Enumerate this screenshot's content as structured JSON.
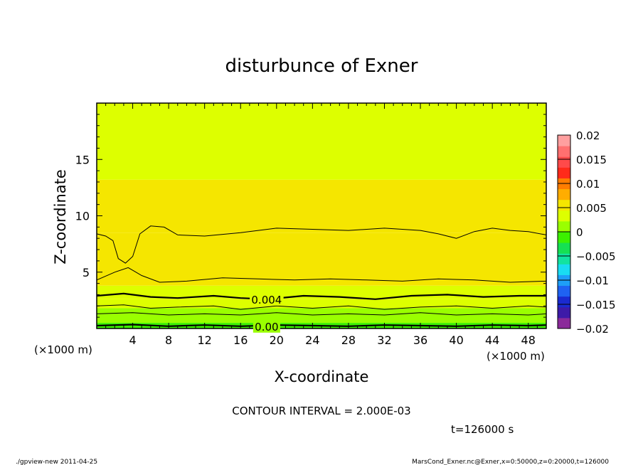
{
  "chart_data": {
    "type": "heatmap",
    "title": "disturbunce of Exner",
    "xlabel": "X-coordinate",
    "ylabel": "Z-coordinate",
    "x_unit_left": "(×1000 m)",
    "x_unit_right": "(×1000 m)",
    "xlim": [
      0,
      50
    ],
    "ylim": [
      0,
      20
    ],
    "x_ticks": [
      "4",
      "8",
      "12",
      "16",
      "20",
      "24",
      "28",
      "32",
      "36",
      "40",
      "44",
      "48"
    ],
    "y_ticks": [
      "5",
      "10",
      "15"
    ],
    "contour_interval_text": "CONTOUR INTERVAL = 2.000E-03",
    "time_text": "t=126000 s",
    "contour_labels": [
      {
        "text": "0.004",
        "x": 17.0,
        "z": 2.6
      },
      {
        "text": "0.00",
        "x": 17.0,
        "z": 0.2
      }
    ],
    "fill_bands": [
      {
        "z_bottom": 0,
        "z_top": 0.5,
        "value": -0.0005
      },
      {
        "z_bottom": 0.5,
        "z_top": 1.2,
        "value": 0.0005
      },
      {
        "z_bottom": 1.2,
        "z_top": 1.8,
        "value": 0.0015
      },
      {
        "z_bottom": 1.8,
        "z_top": 2.6,
        "value": 0.0025
      },
      {
        "z_bottom": 2.6,
        "z_top": 3.8,
        "value": 0.0035
      },
      {
        "z_bottom": 3.8,
        "z_top": 8.5,
        "value": 0.0055
      },
      {
        "z_bottom": 8.5,
        "z_top": 13.2,
        "value": 0.0045
      },
      {
        "z_bottom": 13.2,
        "z_top": 20,
        "value": 0.0035
      }
    ],
    "contour_lines": [
      {
        "level": 0.006,
        "bold": false,
        "points": [
          [
            0,
            8.4
          ],
          [
            1,
            8.2
          ],
          [
            1.8,
            7.8
          ],
          [
            2.4,
            6.2
          ],
          [
            3.2,
            5.8
          ],
          [
            4.0,
            6.4
          ],
          [
            4.8,
            8.4
          ],
          [
            6,
            9.1
          ],
          [
            7.5,
            9.0
          ],
          [
            9,
            8.3
          ],
          [
            12,
            8.2
          ],
          [
            16,
            8.5
          ],
          [
            20,
            8.9
          ],
          [
            24,
            8.8
          ],
          [
            28,
            8.7
          ],
          [
            32,
            8.9
          ],
          [
            36,
            8.7
          ],
          [
            38,
            8.4
          ],
          [
            40,
            8.0
          ],
          [
            42,
            8.6
          ],
          [
            44,
            8.9
          ],
          [
            46,
            8.7
          ],
          [
            48,
            8.6
          ],
          [
            50,
            8.3
          ]
        ]
      },
      {
        "level": 0.005,
        "bold": false,
        "points": [
          [
            0,
            4.3
          ],
          [
            2,
            5.0
          ],
          [
            3.5,
            5.4
          ],
          [
            5,
            4.7
          ],
          [
            7,
            4.1
          ],
          [
            10,
            4.2
          ],
          [
            14,
            4.5
          ],
          [
            18,
            4.4
          ],
          [
            22,
            4.3
          ],
          [
            26,
            4.4
          ],
          [
            30,
            4.3
          ],
          [
            34,
            4.2
          ],
          [
            38,
            4.4
          ],
          [
            42,
            4.3
          ],
          [
            46,
            4.1
          ],
          [
            50,
            4.2
          ]
        ]
      },
      {
        "level": 0.004,
        "bold": true,
        "points": [
          [
            0,
            2.9
          ],
          [
            3,
            3.1
          ],
          [
            6,
            2.8
          ],
          [
            9,
            2.7
          ],
          [
            13,
            2.9
          ],
          [
            16,
            2.7
          ],
          [
            19,
            2.6
          ],
          [
            23,
            2.9
          ],
          [
            27,
            2.8
          ],
          [
            31,
            2.6
          ],
          [
            35,
            2.9
          ],
          [
            39,
            3.0
          ],
          [
            43,
            2.8
          ],
          [
            47,
            2.9
          ],
          [
            50,
            2.9
          ]
        ]
      },
      {
        "level": 0.002,
        "bold": false,
        "points": [
          [
            0,
            2.0
          ],
          [
            3,
            2.1
          ],
          [
            6,
            1.8
          ],
          [
            9,
            1.9
          ],
          [
            13,
            2.0
          ],
          [
            16,
            1.7
          ],
          [
            20,
            2.0
          ],
          [
            24,
            1.8
          ],
          [
            28,
            2.0
          ],
          [
            32,
            1.7
          ],
          [
            36,
            1.9
          ],
          [
            40,
            2.0
          ],
          [
            44,
            1.8
          ],
          [
            48,
            2.0
          ],
          [
            50,
            1.9
          ]
        ]
      },
      {
        "level": 0.001,
        "bold": false,
        "points": [
          [
            0,
            1.3
          ],
          [
            4,
            1.4
          ],
          [
            8,
            1.2
          ],
          [
            12,
            1.3
          ],
          [
            16,
            1.2
          ],
          [
            20,
            1.4
          ],
          [
            24,
            1.2
          ],
          [
            28,
            1.3
          ],
          [
            32,
            1.2
          ],
          [
            36,
            1.4
          ],
          [
            40,
            1.2
          ],
          [
            44,
            1.3
          ],
          [
            48,
            1.2
          ],
          [
            50,
            1.3
          ]
        ]
      },
      {
        "level": 0.0,
        "bold": true,
        "points": [
          [
            0,
            0.25
          ],
          [
            4,
            0.35
          ],
          [
            8,
            0.2
          ],
          [
            12,
            0.3
          ],
          [
            16,
            0.2
          ],
          [
            20,
            0.3
          ],
          [
            24,
            0.25
          ],
          [
            28,
            0.2
          ],
          [
            32,
            0.3
          ],
          [
            36,
            0.25
          ],
          [
            40,
            0.2
          ],
          [
            44,
            0.3
          ],
          [
            48,
            0.25
          ],
          [
            50,
            0.3
          ]
        ]
      }
    ],
    "colorbar": {
      "tick_labels": [
        "0.02",
        "0.015",
        "0.01",
        "0.005",
        "0",
        "−0.005",
        "−0.01",
        "−0.015",
        "−0.02"
      ],
      "min": -0.02,
      "max": 0.02,
      "step": 0.0025
    },
    "colors": {
      "levels": [
        "#8b2a9a",
        "#3d1aa8",
        "#1a2ad0",
        "#1f62f2",
        "#1e9ef7",
        "#19dcf2",
        "#12e3a0",
        "#16e052",
        "#3cf000",
        "#9aff00",
        "#ddff00",
        "#f5e600",
        "#ffad00",
        "#ff7d00",
        "#ff2a1a",
        "#ff4a4a",
        "#ff7070",
        "#ff9f9f"
      ]
    }
  },
  "footer": {
    "left": "./gpview-new   2011-04-25",
    "right": "MarsCond_Exner.nc@Exner,x=0:50000,z=0:20000,t=126000"
  }
}
